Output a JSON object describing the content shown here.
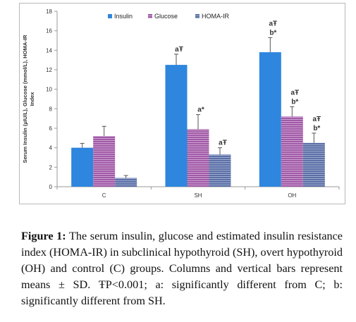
{
  "chart_data": {
    "type": "bar",
    "title": "",
    "xlabel": "",
    "ylabel": "Serum Insulin (µIU/L), Glucose (mmol/L), HOMA-IR Index",
    "ylim": [
      0,
      18
    ],
    "yticks": [
      0,
      2,
      4,
      6,
      8,
      10,
      12,
      14,
      16,
      18
    ],
    "grid": false,
    "legend_position": "top",
    "categories": [
      "C",
      "SH",
      "OH"
    ],
    "series": [
      {
        "name": "Insulin",
        "color": "#2e86de",
        "pattern": "solid",
        "values": [
          4.0,
          12.5,
          13.8
        ],
        "errors": [
          0.45,
          1.1,
          1.5
        ]
      },
      {
        "name": "Glucose",
        "color": "#a05aa6",
        "pattern": "horizontal-stripes",
        "values": [
          5.2,
          5.9,
          7.2
        ],
        "errors": [
          1.0,
          1.5,
          1.0
        ]
      },
      {
        "name": "HOMA-IR",
        "color": "#5b6fa6",
        "pattern": "horizontal-stripes",
        "values": [
          0.9,
          3.3,
          4.5
        ],
        "errors": [
          0.25,
          0.7,
          1.0
        ]
      }
    ],
    "annotations": [
      {
        "category": "SH",
        "series": "Insulin",
        "lines": [
          "aŦ"
        ]
      },
      {
        "category": "SH",
        "series": "Glucose",
        "lines": [
          "a*"
        ]
      },
      {
        "category": "SH",
        "series": "HOMA-IR",
        "lines": [
          "aŦ"
        ]
      },
      {
        "category": "OH",
        "series": "Insulin",
        "lines": [
          "aŦ",
          "b*"
        ]
      },
      {
        "category": "OH",
        "series": "Glucose",
        "lines": [
          "aŦ",
          "b*"
        ]
      },
      {
        "category": "OH",
        "series": "HOMA-IR",
        "lines": [
          "aŦ",
          "b*"
        ]
      }
    ]
  },
  "caption": {
    "label": "Figure 1:",
    "text": "The serum insulin, glucose and estimated insulin resistance index (HOMA-IR) in subclinical hypothyroid (SH), overt hypothyroid (OH) and control (C) groups. Columns and vertical bars represent means ± SD. ŦP<0.001; a: significantly different from C; b: significantly different from SH."
  }
}
